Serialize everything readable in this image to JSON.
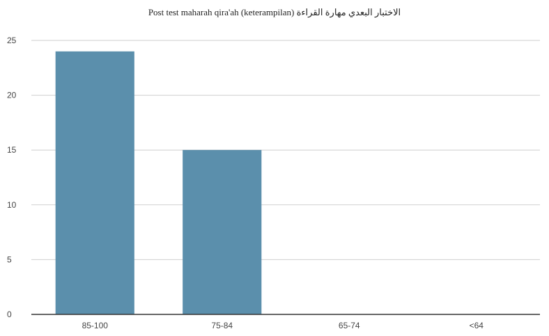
{
  "chart_data": {
    "type": "bar",
    "title": "Post test maharah qira'ah (keterampilan) الاختبار البعدي مهارة القراءة",
    "xlabel": "",
    "ylabel": "",
    "categories": [
      "85-100",
      "75-84",
      "65-74",
      "<64"
    ],
    "values": [
      24,
      15,
      0,
      0
    ],
    "ylim": [
      0,
      25
    ],
    "yticks": [
      0,
      5,
      10,
      15,
      20,
      25
    ],
    "grid": true,
    "legend": "none",
    "bar_color": "#5b8fac"
  }
}
